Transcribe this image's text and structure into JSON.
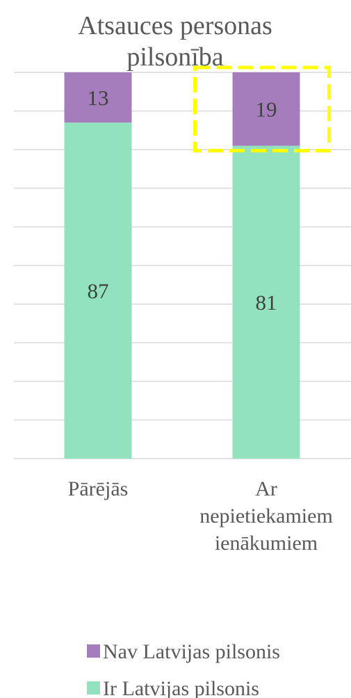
{
  "chart_data": {
    "type": "bar",
    "stacked": true,
    "title_lines": [
      "Atsauces personas",
      "pilsonība"
    ],
    "categories": [
      [
        "Pārējās"
      ],
      [
        "Ar",
        "nepietiekamiem",
        "ienākumiem"
      ]
    ],
    "series": [
      {
        "name": "Ir Latvijas pilsonis",
        "values": [
          87,
          81
        ],
        "color": "#92e3bd"
      },
      {
        "name": "Nav Latvijas pilsonis",
        "values": [
          13,
          19
        ],
        "color": "#a57dbd"
      }
    ],
    "ylim": [
      0,
      100
    ],
    "gridlines": true,
    "legend_position": "bottom",
    "highlight": {
      "category_index": 1,
      "series_index": 1,
      "color": "#ffff00",
      "style": "dashed"
    }
  }
}
